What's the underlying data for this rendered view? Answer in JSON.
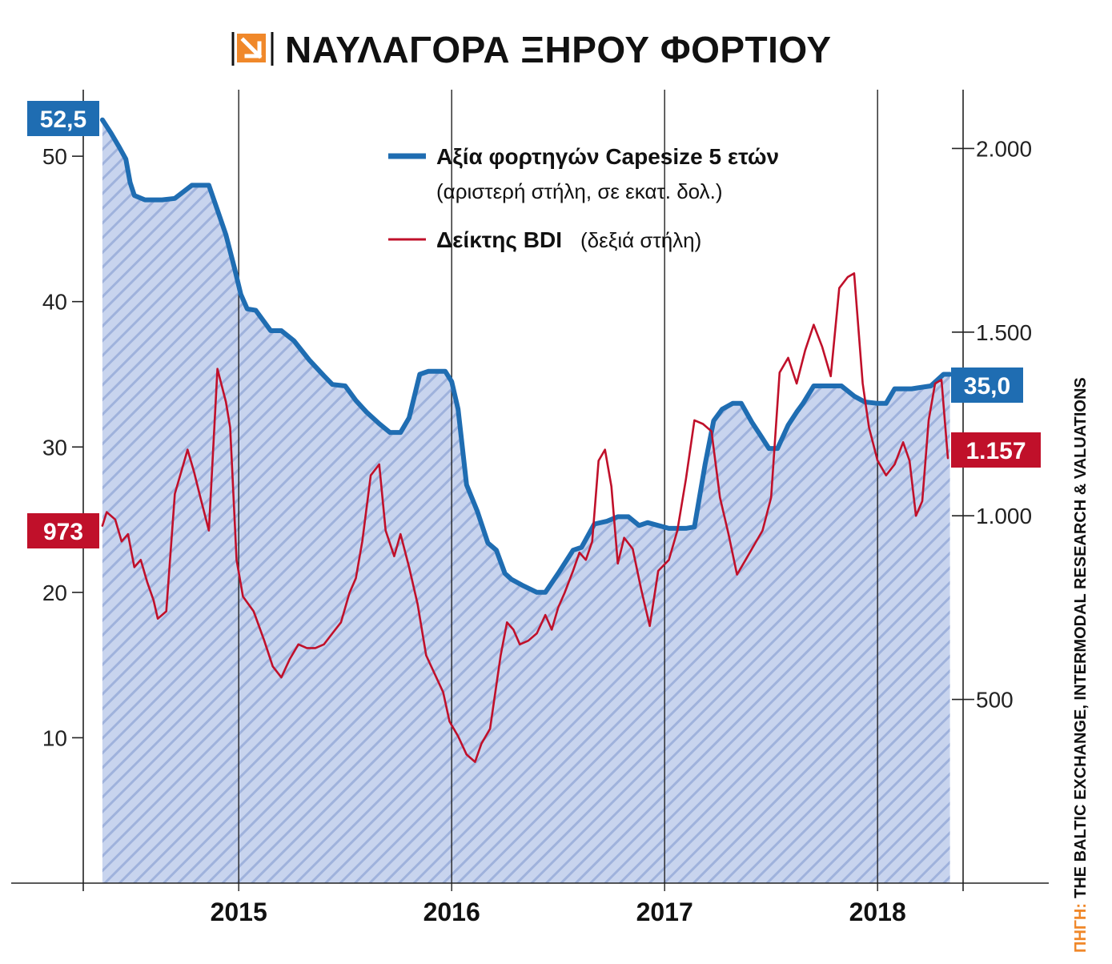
{
  "title": "ΝΑΥΛΑΓΟΡΑ ΞΗΡΟΥ ΦΟΡΤΙΟΥ",
  "title_icon": "down-right-arrow-icon",
  "colors": {
    "capesize": "#1f6db2",
    "bdi": "#c0102a",
    "fill": "#c8d4ee",
    "hatch": "#9fb2dc",
    "accent": "#f0882a"
  },
  "legend": {
    "capesize_label": "Αξία φορτηγών Capesize 5 ετών",
    "capesize_note": "(αριστερή στήλη, σε εκατ. δολ.)",
    "bdi_label": "Δείκτης BDI",
    "bdi_note": "(δεξιά στήλη)"
  },
  "badges": {
    "capesize_start": "52,5",
    "capesize_end": "35,0",
    "bdi_start": "973",
    "bdi_end": "1.157"
  },
  "source": {
    "prefix": "ΠΗΓΗ:",
    "text": "THE BALTIC EXCHANGE, INTERMODAL RESEARCH & VALUATIONS"
  },
  "chart_data": {
    "type": "line",
    "grid": "vertical lines at year boundaries",
    "legend_position": "top-center",
    "x_ticks": [
      "2015",
      "2016",
      "2017",
      "2018"
    ],
    "x_range": [
      2014.27,
      2018.4
    ],
    "left_axis": {
      "ticks": [
        "10",
        "20",
        "30",
        "40",
        "50"
      ],
      "tick_values": [
        10,
        20,
        30,
        40,
        50
      ],
      "range": [
        0,
        57
      ]
    },
    "right_axis": {
      "ticks": [
        "500",
        "1.000",
        "1.500",
        "2.000"
      ],
      "tick_values": [
        500,
        1000,
        1500,
        2000
      ],
      "range": [
        0,
        2160
      ]
    },
    "series": [
      {
        "name": "Αξία φορτηγών Capesize 5 ετών",
        "axis": "left",
        "fill": true,
        "points": [
          [
            2014.36,
            52.5
          ],
          [
            2014.4,
            51.6
          ],
          [
            2014.44,
            50.6
          ],
          [
            2014.47,
            49.8
          ],
          [
            2014.49,
            48.2
          ],
          [
            2014.51,
            47.3
          ],
          [
            2014.56,
            47.0
          ],
          [
            2014.64,
            47.0
          ],
          [
            2014.7,
            47.1
          ],
          [
            2014.78,
            48.0
          ],
          [
            2014.86,
            48.0
          ],
          [
            2014.9,
            46.3
          ],
          [
            2014.94,
            44.6
          ],
          [
            2014.98,
            42.3
          ],
          [
            2015.01,
            40.5
          ],
          [
            2015.04,
            39.5
          ],
          [
            2015.08,
            39.4
          ],
          [
            2015.15,
            38.0
          ],
          [
            2015.2,
            38.0
          ],
          [
            2015.26,
            37.3
          ],
          [
            2015.33,
            36.0
          ],
          [
            2015.4,
            34.9
          ],
          [
            2015.44,
            34.3
          ],
          [
            2015.5,
            34.2
          ],
          [
            2015.55,
            33.2
          ],
          [
            2015.6,
            32.4
          ],
          [
            2015.66,
            31.6
          ],
          [
            2015.71,
            31.0
          ],
          [
            2015.76,
            31.0
          ],
          [
            2015.8,
            32.0
          ],
          [
            2015.85,
            35.0
          ],
          [
            2015.89,
            35.2
          ],
          [
            2015.97,
            35.2
          ],
          [
            2016.0,
            34.5
          ],
          [
            2016.03,
            32.6
          ],
          [
            2016.07,
            27.4
          ],
          [
            2016.12,
            25.6
          ],
          [
            2016.17,
            23.4
          ],
          [
            2016.21,
            22.9
          ],
          [
            2016.25,
            21.3
          ],
          [
            2016.28,
            20.9
          ],
          [
            2016.33,
            20.5
          ],
          [
            2016.4,
            20.0
          ],
          [
            2016.44,
            20.0
          ],
          [
            2016.5,
            21.3
          ],
          [
            2016.57,
            22.9
          ],
          [
            2016.61,
            23.1
          ],
          [
            2016.67,
            24.7
          ],
          [
            2016.73,
            24.9
          ],
          [
            2016.78,
            25.2
          ],
          [
            2016.83,
            25.2
          ],
          [
            2016.88,
            24.6
          ],
          [
            2016.92,
            24.8
          ],
          [
            2016.97,
            24.6
          ],
          [
            2017.02,
            24.4
          ],
          [
            2017.1,
            24.4
          ],
          [
            2017.14,
            24.5
          ],
          [
            2017.19,
            28.8
          ],
          [
            2017.23,
            31.8
          ],
          [
            2017.27,
            32.6
          ],
          [
            2017.32,
            33.0
          ],
          [
            2017.36,
            33.0
          ],
          [
            2017.41,
            31.7
          ],
          [
            2017.45,
            30.8
          ],
          [
            2017.49,
            29.9
          ],
          [
            2017.53,
            29.9
          ],
          [
            2017.58,
            31.5
          ],
          [
            2017.62,
            32.4
          ],
          [
            2017.65,
            33.0
          ],
          [
            2017.7,
            34.2
          ],
          [
            2017.77,
            34.2
          ],
          [
            2017.83,
            34.2
          ],
          [
            2017.89,
            33.5
          ],
          [
            2017.94,
            33.1
          ],
          [
            2018.0,
            33.0
          ],
          [
            2018.04,
            33.0
          ],
          [
            2018.08,
            34.0
          ],
          [
            2018.16,
            34.0
          ],
          [
            2018.25,
            34.2
          ],
          [
            2018.31,
            35.0
          ],
          [
            2018.34,
            35.0
          ]
        ]
      },
      {
        "name": "Δείκτης BDI",
        "axis": "right",
        "fill": false,
        "points": [
          [
            2014.36,
            973
          ],
          [
            2014.38,
            1010
          ],
          [
            2014.42,
            990
          ],
          [
            2014.45,
            930
          ],
          [
            2014.48,
            950
          ],
          [
            2014.51,
            860
          ],
          [
            2014.54,
            880
          ],
          [
            2014.57,
            820
          ],
          [
            2014.6,
            770
          ],
          [
            2014.62,
            720
          ],
          [
            2014.66,
            740
          ],
          [
            2014.7,
            1060
          ],
          [
            2014.73,
            1120
          ],
          [
            2014.76,
            1180
          ],
          [
            2014.79,
            1120
          ],
          [
            2014.82,
            1050
          ],
          [
            2014.86,
            960
          ],
          [
            2014.9,
            1400
          ],
          [
            2014.94,
            1310
          ],
          [
            2014.96,
            1240
          ],
          [
            2014.99,
            880
          ],
          [
            2015.02,
            780
          ],
          [
            2015.07,
            740
          ],
          [
            2015.12,
            660
          ],
          [
            2015.16,
            590
          ],
          [
            2015.2,
            560
          ],
          [
            2015.24,
            610
          ],
          [
            2015.28,
            650
          ],
          [
            2015.32,
            640
          ],
          [
            2015.36,
            640
          ],
          [
            2015.4,
            650
          ],
          [
            2015.44,
            680
          ],
          [
            2015.48,
            710
          ],
          [
            2015.52,
            790
          ],
          [
            2015.55,
            830
          ],
          [
            2015.58,
            930
          ],
          [
            2015.62,
            1110
          ],
          [
            2015.66,
            1140
          ],
          [
            2015.69,
            960
          ],
          [
            2015.73,
            890
          ],
          [
            2015.76,
            950
          ],
          [
            2015.8,
            860
          ],
          [
            2015.84,
            760
          ],
          [
            2015.88,
            620
          ],
          [
            2015.92,
            570
          ],
          [
            2015.96,
            520
          ],
          [
            2015.99,
            440
          ],
          [
            2016.03,
            400
          ],
          [
            2016.07,
            350
          ],
          [
            2016.11,
            330
          ],
          [
            2016.14,
            380
          ],
          [
            2016.18,
            420
          ],
          [
            2016.2,
            500
          ],
          [
            2016.23,
            620
          ],
          [
            2016.26,
            710
          ],
          [
            2016.29,
            690
          ],
          [
            2016.32,
            650
          ],
          [
            2016.36,
            660
          ],
          [
            2016.4,
            680
          ],
          [
            2016.44,
            730
          ],
          [
            2016.47,
            690
          ],
          [
            2016.5,
            750
          ],
          [
            2016.53,
            790
          ],
          [
            2016.57,
            850
          ],
          [
            2016.6,
            900
          ],
          [
            2016.63,
            880
          ],
          [
            2016.66,
            930
          ],
          [
            2016.69,
            1150
          ],
          [
            2016.72,
            1180
          ],
          [
            2016.75,
            1080
          ],
          [
            2016.78,
            870
          ],
          [
            2016.81,
            940
          ],
          [
            2016.85,
            910
          ],
          [
            2016.89,
            800
          ],
          [
            2016.93,
            700
          ],
          [
            2016.97,
            850
          ],
          [
            2017.02,
            880
          ],
          [
            2017.06,
            960
          ],
          [
            2017.1,
            1100
          ],
          [
            2017.14,
            1260
          ],
          [
            2017.18,
            1250
          ],
          [
            2017.22,
            1230
          ],
          [
            2017.26,
            1050
          ],
          [
            2017.3,
            950
          ],
          [
            2017.34,
            840
          ],
          [
            2017.38,
            880
          ],
          [
            2017.42,
            920
          ],
          [
            2017.46,
            960
          ],
          [
            2017.5,
            1050
          ],
          [
            2017.54,
            1390
          ],
          [
            2017.58,
            1430
          ],
          [
            2017.62,
            1360
          ],
          [
            2017.66,
            1450
          ],
          [
            2017.7,
            1520
          ],
          [
            2017.74,
            1460
          ],
          [
            2017.78,
            1380
          ],
          [
            2017.82,
            1620
          ],
          [
            2017.86,
            1650
          ],
          [
            2017.89,
            1660
          ],
          [
            2017.93,
            1360
          ],
          [
            2017.96,
            1240
          ],
          [
            2018.0,
            1150
          ],
          [
            2018.04,
            1110
          ],
          [
            2018.08,
            1140
          ],
          [
            2018.12,
            1200
          ],
          [
            2018.15,
            1150
          ],
          [
            2018.18,
            1000
          ],
          [
            2018.21,
            1040
          ],
          [
            2018.24,
            1260
          ],
          [
            2018.27,
            1360
          ],
          [
            2018.3,
            1370
          ],
          [
            2018.33,
            1157
          ]
        ]
      }
    ]
  }
}
